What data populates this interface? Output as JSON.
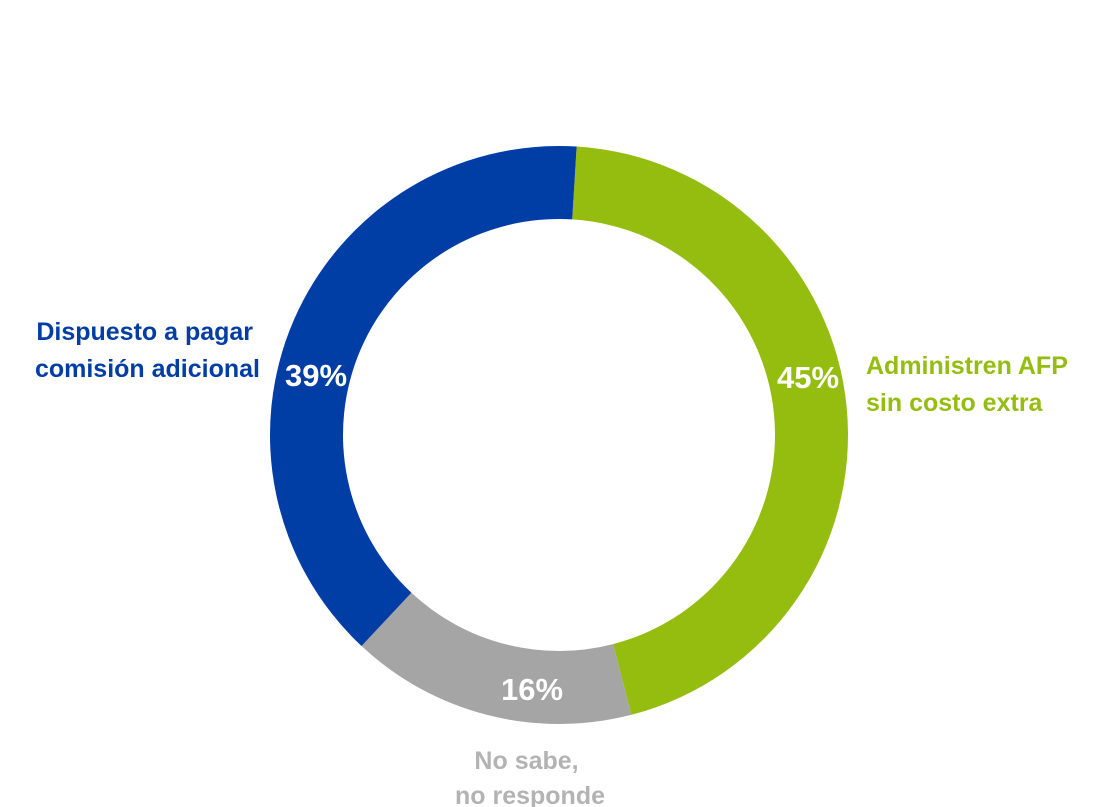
{
  "chart_data": {
    "type": "pie",
    "donut": true,
    "title": "",
    "slices": [
      {
        "label_lines": [
          "Administren AFP",
          "sin costo extra"
        ],
        "value": 45,
        "value_label": "45%",
        "color": "#95bd0f",
        "label_color": "#95bd0f"
      },
      {
        "label_lines": [
          "No sabe,",
          "no responde"
        ],
        "value": 16,
        "value_label": "16%",
        "color": "#a5a5a5",
        "label_color": "#b3b3b3"
      },
      {
        "label_lines": [
          "Dispuesto a pagar",
          "comisión adicional"
        ],
        "value": 39,
        "value_label": "39%",
        "color": "#003da5",
        "label_color": "#003da5"
      }
    ]
  }
}
